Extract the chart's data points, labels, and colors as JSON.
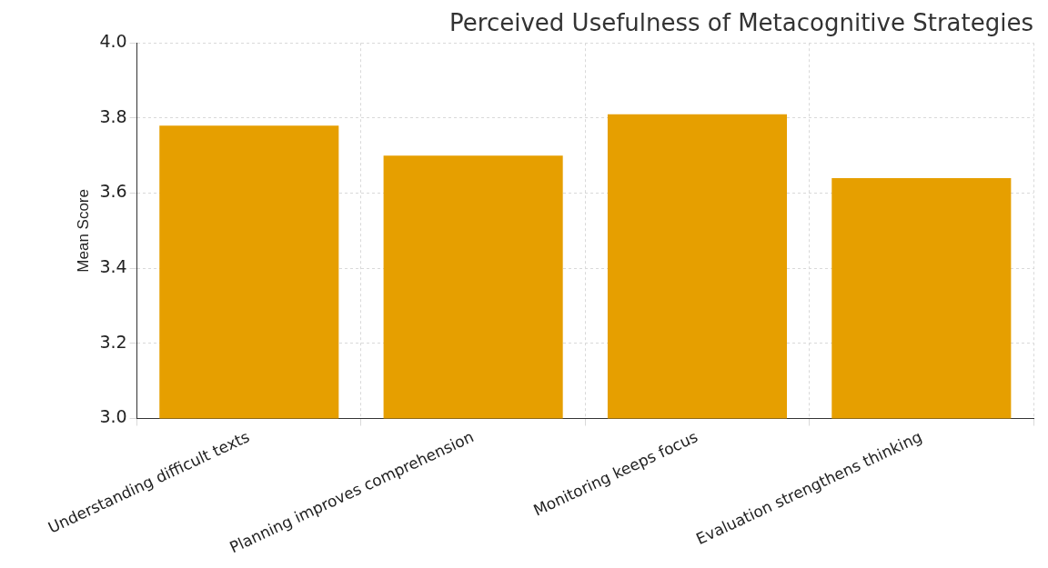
{
  "chart_data": {
    "type": "bar",
    "title": "Perceived Usefulness of Metacognitive Strategies",
    "ylabel": "Mean Score",
    "categories": [
      "Understanding difficult texts",
      "Planning improves comprehension",
      "Monitoring keeps focus",
      "Evaluation strengthens thinking"
    ],
    "values": [
      3.78,
      3.7,
      3.81,
      3.64
    ],
    "color": "#e69f00",
    "ylim": [
      3.0,
      4.0
    ],
    "yticks": [
      {
        "value": 3.0,
        "label": "3.0"
      },
      {
        "value": 3.2,
        "label": "3.2"
      },
      {
        "value": 3.4,
        "label": "3.4"
      },
      {
        "value": 3.6,
        "label": "3.6"
      },
      {
        "value": 3.8,
        "label": "3.8"
      },
      {
        "value": 4.0,
        "label": "4.0"
      }
    ],
    "grid": true
  }
}
